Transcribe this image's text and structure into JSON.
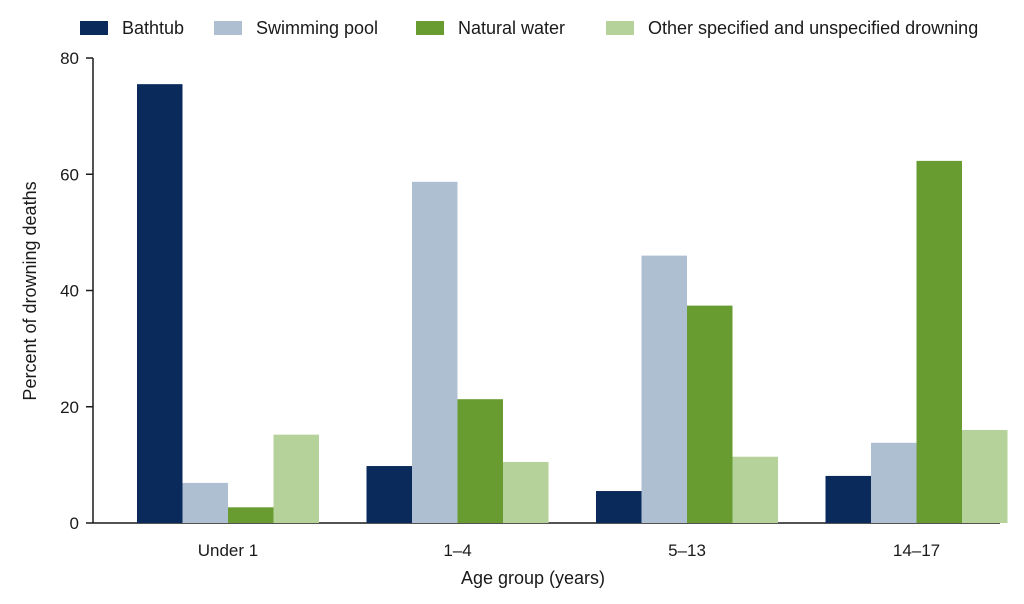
{
  "chart_data": {
    "type": "bar",
    "title": "",
    "xlabel": "Age group (years)",
    "ylabel": "Percent of drowning deaths",
    "ylim": [
      0,
      80
    ],
    "yticks": [
      0,
      20,
      40,
      60,
      80
    ],
    "categories": [
      "Under 1",
      "1–4",
      "5–13",
      "14–17"
    ],
    "legend_position": "top",
    "grid": false,
    "series": [
      {
        "name": "Bathtub",
        "color": "#0a2a5c",
        "values": [
          75.5,
          9.8,
          5.5,
          8.1
        ]
      },
      {
        "name": "Swimming pool",
        "color": "#afbfd2",
        "values": [
          6.9,
          58.7,
          46.0,
          13.8
        ]
      },
      {
        "name": "Natural water",
        "color": "#689c31",
        "values": [
          2.7,
          21.3,
          37.4,
          62.3
        ]
      },
      {
        "name": "Other specified and unspecified drowning",
        "color": "#b5d29a",
        "values": [
          15.2,
          10.5,
          11.4,
          16.0
        ]
      }
    ]
  }
}
